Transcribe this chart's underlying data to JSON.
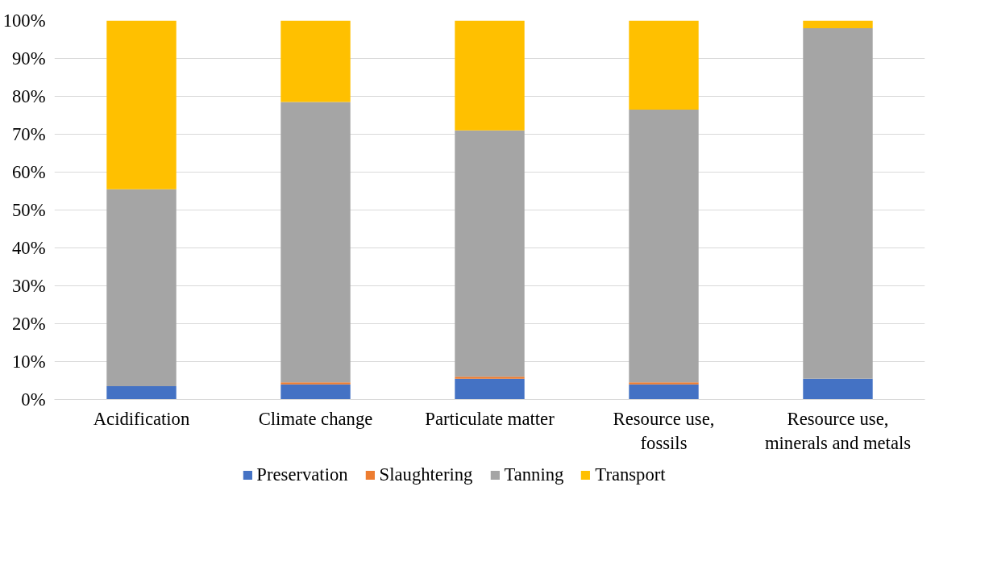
{
  "chart_data": {
    "type": "bar",
    "stacked": true,
    "categories": [
      "Acidification",
      "Climate change",
      "Particulate matter",
      "Resource use,\nfossils",
      "Resource use,\nminerals and metals"
    ],
    "series": [
      {
        "name": "Preservation",
        "color": "#4472c4",
        "values": [
          3.5,
          4,
          5.5,
          4,
          5.5
        ]
      },
      {
        "name": "Slaughtering",
        "color": "#ed7d31",
        "values": [
          null,
          0.5,
          0.5,
          0.5,
          null
        ]
      },
      {
        "name": "Tanning",
        "color": "#a5a5a5",
        "values": [
          52,
          74,
          65,
          72,
          92.5
        ]
      },
      {
        "name": "Transport",
        "color": "#ffc000",
        "values": [
          44.5,
          21.5,
          29,
          23.5,
          2
        ]
      }
    ],
    "ylim": [
      0,
      100
    ],
    "yticks": [
      {
        "value": 0,
        "label": "0%"
      },
      {
        "value": 10,
        "label": "10%"
      },
      {
        "value": 20,
        "label": "20%"
      },
      {
        "value": 30,
        "label": "30%"
      },
      {
        "value": 40,
        "label": "40%"
      },
      {
        "value": 50,
        "label": "50%"
      },
      {
        "value": 60,
        "label": "60%"
      },
      {
        "value": 70,
        "label": "70%"
      },
      {
        "value": 80,
        "label": "80%"
      },
      {
        "value": 90,
        "label": "90%"
      },
      {
        "value": 100,
        "label": "100%"
      }
    ],
    "grid": "y",
    "legend": "bottom"
  }
}
